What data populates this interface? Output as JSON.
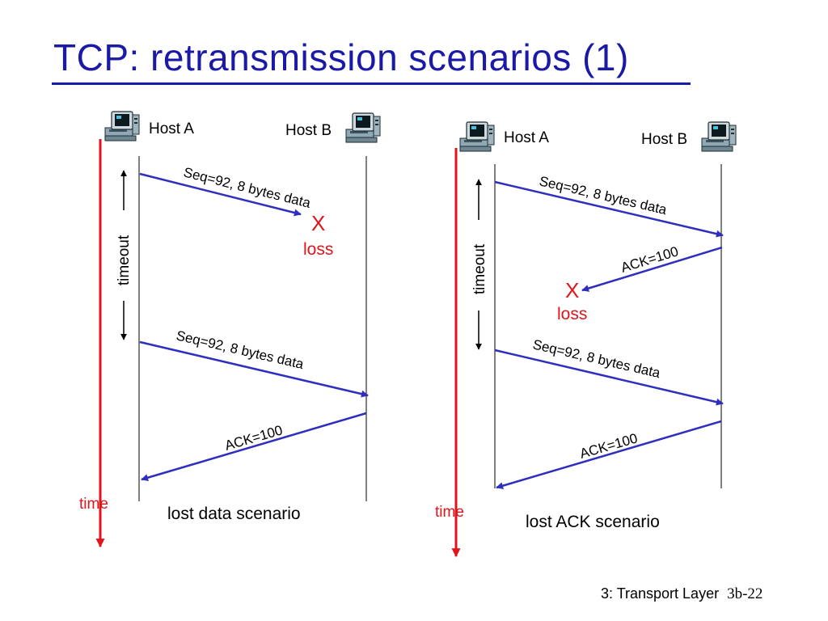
{
  "slide": {
    "title": "TCP: retransmission scenarios (1)",
    "footer_label": "3: Transport Layer",
    "page_number": "3b-22"
  },
  "colors": {
    "title": "#1a1aa6",
    "message_arrow": "#2e2ebf",
    "time_axis": "#e0141c",
    "loss": "#e0141c",
    "timeline": "#000000"
  },
  "scenarios": [
    {
      "host_a": "Host A",
      "host_b": "Host B",
      "timeout_label": "timeout",
      "time_label": "time",
      "caption": "lost data scenario",
      "loss_marker": "X",
      "loss_label": "loss",
      "messages": [
        {
          "label": "Seq=92, 8 bytes data",
          "direction": "A-to-B",
          "lost": true
        },
        {
          "label": "Seq=92, 8 bytes data",
          "direction": "A-to-B",
          "lost": false
        },
        {
          "label": "ACK=100",
          "direction": "B-to-A",
          "lost": false
        }
      ]
    },
    {
      "host_a": "Host A",
      "host_b": "Host B",
      "timeout_label": "timeout",
      "time_label": "time",
      "caption": "lost ACK scenario",
      "loss_marker": "X",
      "loss_label": "loss",
      "messages": [
        {
          "label": "Seq=92, 8 bytes data",
          "direction": "A-to-B",
          "lost": false
        },
        {
          "label": "ACK=100",
          "direction": "B-to-A",
          "lost": true
        },
        {
          "label": "Seq=92, 8 bytes data",
          "direction": "A-to-B",
          "lost": false
        },
        {
          "label": "ACK=100",
          "direction": "B-to-A",
          "lost": false
        }
      ]
    }
  ]
}
